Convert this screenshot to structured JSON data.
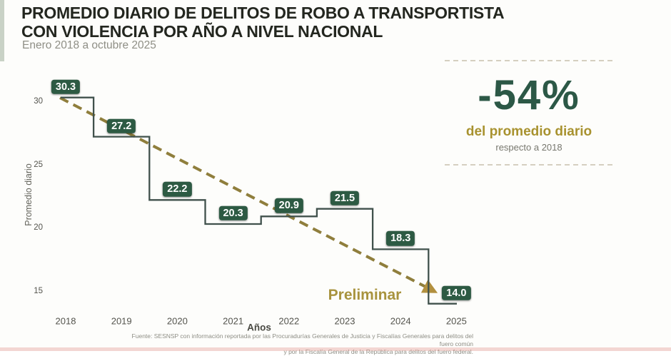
{
  "header": {
    "title_line1": "PROMEDIO DIARIO DE DELITOS DE ROBO A TRANSPORTISTA",
    "title_line2": "CON VIOLENCIA POR AÑO A NIVEL NACIONAL",
    "subtitle": "Enero 2018 a octubre 2025"
  },
  "stat_panel": {
    "value": "-54%",
    "label": "del promedio diario",
    "sublabel": "respecto a 2018"
  },
  "chart_data": {
    "type": "line",
    "step": true,
    "title": "Promedio diario de delitos de robo a transportista con violencia por año a nivel nacional",
    "x": [
      2018,
      2019,
      2020,
      2021,
      2022,
      2023,
      2024,
      2025
    ],
    "values": [
      30.3,
      27.2,
      22.2,
      20.3,
      20.9,
      21.5,
      18.3,
      14.0
    ],
    "xlabel": "Años",
    "ylabel": "Promedio diario",
    "yticks": [
      30,
      25,
      20,
      15
    ],
    "ylim": [
      12.5,
      31.5
    ],
    "grid": false,
    "legend": "none",
    "annotation": "Preliminar",
    "trend": {
      "style": "dashed-arrow",
      "from": {
        "x": 2018,
        "value": 30.3
      },
      "to": {
        "x": 2025,
        "value": 14.0
      }
    }
  },
  "footer": {
    "line1": "Fuente: SESNSP con información reportada por las Procuradurías Generales de Justicia y Fiscalías Generales para delitos del fuero común",
    "line2": "y por la Fiscalía General de la República para delitos del fuero federal."
  },
  "colors": {
    "background": "#fdfdfb",
    "title": "#23261f",
    "subtitle": "#8f8f86",
    "chip_bg": "#2d5a43",
    "chip_text": "#ffffff",
    "step_line": "#40514c",
    "trend_dash": "#8f7e3c",
    "arrow": "#b2903f",
    "stat_value": "#2c5846",
    "stat_label": "#a8922f",
    "stat_sublabel": "#77776e",
    "separator_dash": "#d5cfc0",
    "axis_text": "#54544d",
    "preliminar_text": "#a8933e"
  }
}
